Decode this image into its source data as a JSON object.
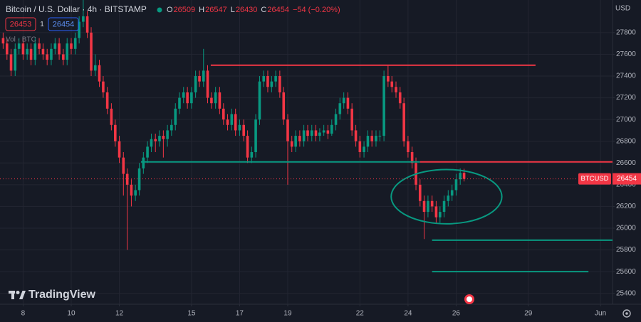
{
  "chart_data": {
    "type": "candlestick",
    "title": "Bitcoin / U.S. Dollar · 4h · BITSTAMP",
    "ohlc_labels": [
      "O",
      "H",
      "L",
      "C"
    ],
    "ohlc_values": [
      26509,
      26547,
      26430,
      26454
    ],
    "change": "−54 (−0.20%)",
    "bid": 26453,
    "spread": 1,
    "ask": 26454,
    "volume_label": "Vol · BTC",
    "currency": "USD",
    "symbol": "BTCUSD",
    "last_price": 26454,
    "brand": "TradingView",
    "up_color": "#089981",
    "down_color": "#f23645",
    "xlim": [
      7.04,
      32.5
    ],
    "xticks": [
      8,
      10,
      12,
      15,
      17,
      19,
      22,
      24,
      26,
      29,
      {
        "value": 32,
        "label": "Jun"
      }
    ],
    "ylim": [
      25300,
      28100
    ],
    "yticks": [
      25400,
      25600,
      25800,
      26000,
      26200,
      26400,
      26600,
      26800,
      27000,
      27200,
      27400,
      27600,
      27800
    ],
    "grid": true,
    "x": [
      7.17,
      7.33,
      7.5,
      7.67,
      7.83,
      8,
      8.17,
      8.33,
      8.5,
      8.67,
      8.83,
      9,
      9.17,
      9.33,
      9.5,
      9.67,
      9.83,
      10,
      10.17,
      10.33,
      10.5,
      10.67,
      10.83,
      11,
      11.17,
      11.33,
      11.5,
      11.67,
      11.83,
      12,
      12.17,
      12.33,
      12.5,
      12.67,
      12.83,
      13,
      13.17,
      13.33,
      13.5,
      13.67,
      13.83,
      14,
      14.17,
      14.33,
      14.5,
      14.67,
      14.83,
      15,
      15.17,
      15.33,
      15.5,
      15.67,
      15.83,
      16,
      16.17,
      16.33,
      16.5,
      16.67,
      16.83,
      17,
      17.17,
      17.33,
      17.5,
      17.67,
      17.83,
      18,
      18.17,
      18.33,
      18.5,
      18.67,
      18.83,
      19,
      19.17,
      19.33,
      19.5,
      19.67,
      19.83,
      20,
      20.17,
      20.33,
      20.5,
      20.67,
      20.83,
      21,
      21.17,
      21.33,
      21.5,
      21.67,
      21.83,
      22,
      22.17,
      22.33,
      22.5,
      22.67,
      22.83,
      23,
      23.17,
      23.33,
      23.5,
      23.67,
      23.83,
      24,
      24.17,
      24.33,
      24.5,
      24.67,
      24.83,
      25,
      25.17,
      25.33,
      25.5,
      25.67,
      25.83,
      26,
      26.17,
      26.33
    ],
    "open": [
      27750,
      27700,
      27600,
      27450,
      27650,
      27700,
      27600,
      27650,
      27550,
      27700,
      27650,
      27600,
      27550,
      27650,
      27700,
      27600,
      27550,
      27700,
      27650,
      27750,
      27900,
      27950,
      27800,
      27450,
      27500,
      27350,
      27250,
      27100,
      26950,
      26800,
      26650,
      26500,
      26400,
      26300,
      26350,
      26550,
      26650,
      26750,
      26820,
      26800,
      26850,
      26820,
      26900,
      26950,
      27100,
      27200,
      27250,
      27150,
      27250,
      27400,
      27350,
      27450,
      27200,
      27150,
      27250,
      27100,
      27000,
      26950,
      27050,
      26900,
      26950,
      26850,
      26650,
      26700,
      27000,
      27350,
      27400,
      27300,
      27350,
      27400,
      27250,
      27000,
      26800,
      26750,
      26850,
      26800,
      26900,
      26850,
      26900,
      26850,
      26880,
      26900,
      26870,
      26950,
      27050,
      27150,
      27200,
      27100,
      26900,
      26800,
      26700,
      26750,
      26850,
      26800,
      26850,
      26850,
      27400,
      27350,
      27300,
      27250,
      27150,
      26800,
      26700,
      26600,
      26400,
      26250,
      26150,
      26250,
      26200,
      26100,
      26150,
      26250,
      26300,
      26350,
      26450,
      26509
    ],
    "high": [
      27800,
      27750,
      27650,
      27700,
      27750,
      27750,
      27700,
      27700,
      27750,
      27750,
      27700,
      27650,
      27700,
      27750,
      27750,
      27650,
      27750,
      27750,
      27800,
      27950,
      28100,
      28000,
      27850,
      27600,
      27550,
      27400,
      27300,
      27150,
      27000,
      26850,
      26700,
      26550,
      26450,
      26400,
      26600,
      26700,
      26800,
      26870,
      26870,
      26900,
      26900,
      26950,
      27000,
      27150,
      27250,
      27300,
      27300,
      27300,
      27450,
      27450,
      27650,
      27500,
      27250,
      27300,
      27300,
      27150,
      27050,
      27100,
      27100,
      27000,
      27000,
      26900,
      26750,
      27050,
      27400,
      27450,
      27450,
      27400,
      27450,
      27450,
      27300,
      27050,
      26850,
      26900,
      26900,
      26950,
      26950,
      26950,
      26950,
      26920,
      26950,
      26950,
      27000,
      27100,
      27200,
      27250,
      27250,
      27150,
      26950,
      26850,
      26800,
      26900,
      26900,
      26900,
      26900,
      27450,
      27500,
      27400,
      27350,
      27300,
      27200,
      26850,
      26750,
      26650,
      26450,
      26300,
      26300,
      26300,
      26250,
      26200,
      26300,
      26350,
      26400,
      26500,
      26550,
      26547
    ],
    "low": [
      27650,
      27550,
      27400,
      27400,
      27600,
      27550,
      27550,
      27500,
      27500,
      27600,
      27550,
      27500,
      27500,
      27600,
      27550,
      27500,
      27500,
      27600,
      27600,
      27700,
      27850,
      27750,
      27400,
      27400,
      27300,
      27200,
      27050,
      26900,
      26750,
      26600,
      26300,
      25800,
      26200,
      26250,
      26300,
      26500,
      26600,
      26700,
      26700,
      26750,
      26650,
      26750,
      26850,
      26900,
      27050,
      27150,
      27100,
      27100,
      27200,
      27300,
      27300,
      27150,
      27100,
      27100,
      27050,
      26950,
      26900,
      26900,
      26850,
      26850,
      26800,
      26600,
      26600,
      26650,
      26950,
      27300,
      27250,
      27250,
      27300,
      27200,
      26950,
      26400,
      26700,
      26700,
      26750,
      26750,
      26800,
      26800,
      26800,
      26800,
      26850,
      26820,
      26850,
      26900,
      27000,
      27100,
      27050,
      26850,
      26750,
      26650,
      26650,
      26700,
      26750,
      26750,
      26800,
      26800,
      27300,
      27250,
      27200,
      27100,
      26750,
      26650,
      26550,
      26350,
      26200,
      25900,
      26100,
      26150,
      26050,
      26050,
      26100,
      26200,
      26250,
      26300,
      26400,
      26430
    ],
    "close": [
      27700,
      27600,
      27450,
      27650,
      27700,
      27600,
      27650,
      27550,
      27700,
      27650,
      27600,
      27550,
      27650,
      27700,
      27600,
      27550,
      27700,
      27650,
      27750,
      27900,
      27950,
      27800,
      27450,
      27500,
      27350,
      27250,
      27100,
      26950,
      26800,
      26650,
      26500,
      26400,
      26300,
      26350,
      26550,
      26650,
      26750,
      26820,
      26800,
      26850,
      26820,
      26900,
      26950,
      27100,
      27200,
      27250,
      27150,
      27250,
      27400,
      27350,
      27450,
      27200,
      27150,
      27250,
      27100,
      27000,
      26950,
      27050,
      26900,
      26950,
      26850,
      26650,
      26700,
      27000,
      27350,
      27400,
      27300,
      27350,
      27400,
      27250,
      27000,
      26800,
      26750,
      26850,
      26800,
      26900,
      26850,
      26900,
      26850,
      26880,
      26900,
      26870,
      26950,
      27050,
      27150,
      27200,
      27100,
      26900,
      26800,
      26700,
      26750,
      26850,
      26800,
      26850,
      26850,
      27400,
      27350,
      27300,
      27250,
      27150,
      26800,
      26700,
      26600,
      26400,
      26250,
      26150,
      26250,
      26200,
      26100,
      26150,
      26250,
      26300,
      26350,
      26450,
      26509,
      26454
    ],
    "horizontal_lines": [
      {
        "y": 27500,
        "x": [
          15.8,
          29.3
        ],
        "color": "#f23645"
      },
      {
        "y": 26610,
        "x": [
          12.9,
          24.5
        ],
        "color": "#089981"
      },
      {
        "y": 26610,
        "x": [
          24.5,
          32.5
        ],
        "color": "#f23645"
      },
      {
        "y": 25890,
        "x": [
          25.0,
          32.5
        ],
        "color": "#089981"
      },
      {
        "y": 25600,
        "x": [
          25.0,
          31.5
        ],
        "color": "#089981"
      }
    ],
    "ellipse": {
      "x": 25.6,
      "y": 26290,
      "rx": 2.3,
      "ry": 250,
      "color": "#089981"
    }
  }
}
